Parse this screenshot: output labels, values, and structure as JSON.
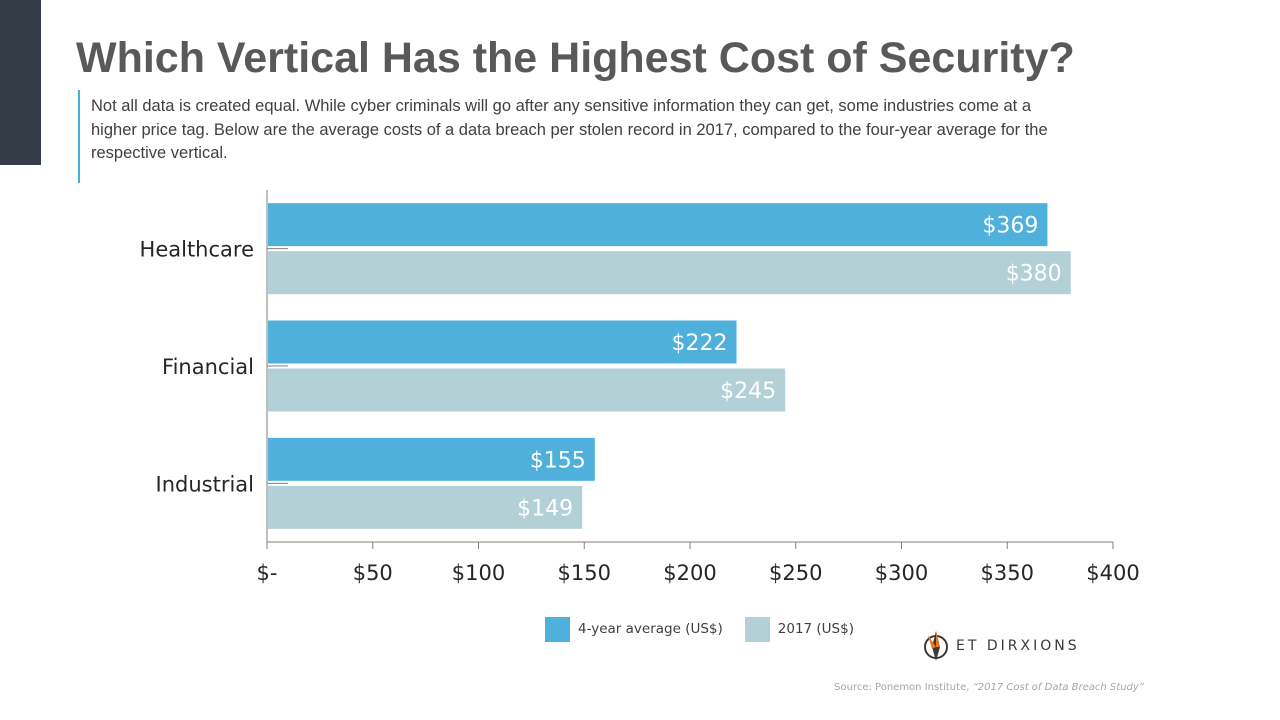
{
  "slide": {
    "title": "Which Vertical Has the Highest Cost of Security?",
    "subtitle": "Not all data is created equal. While cyber criminals will go after any sensitive information they can get, some industries come at a higher price tag. Below are the average costs of a data breach per stolen record in 2017, compared to the four-year average for the respective vertical.",
    "accent_color": "#4aaed9",
    "side_bar_color": "#333c47"
  },
  "chart_data": {
    "type": "bar",
    "orientation": "horizontal",
    "title": "",
    "xlabel": "",
    "ylabel": "",
    "categories": [
      "Healthcare",
      "Financial",
      "Industrial"
    ],
    "series": [
      {
        "name": "4-year average (US$)",
        "color": "#4fb0dc",
        "values": [
          369,
          222,
          155
        ],
        "labels": [
          "$369",
          "$222",
          "$155"
        ]
      },
      {
        "name": "2017 (US$)",
        "color": "#b2d0d6",
        "values": [
          380,
          245,
          149
        ],
        "labels": [
          "$380",
          "$245",
          "$149"
        ]
      }
    ],
    "xlim": [
      0,
      400
    ],
    "xticks": [
      0,
      50,
      100,
      150,
      200,
      250,
      300,
      350,
      400
    ],
    "xtick_labels": [
      "$-",
      "$50",
      "$100",
      "$150",
      "$200",
      "$250",
      "$300",
      "$350",
      "$400"
    ],
    "grid": false,
    "legend_position": "bottom"
  },
  "logo": {
    "text": "ET DIRXIONS",
    "icon": "compass-logo-icon"
  },
  "source": {
    "prefix": "Source: Ponemon Institute, ",
    "study": "“2017 Cost of Data Breach Study”"
  }
}
